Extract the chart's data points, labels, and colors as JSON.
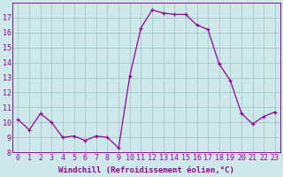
{
  "x": [
    0,
    1,
    2,
    3,
    4,
    5,
    6,
    7,
    8,
    9,
    10,
    11,
    12,
    13,
    14,
    15,
    16,
    17,
    18,
    19,
    20,
    21,
    22,
    23
  ],
  "y": [
    10.2,
    9.5,
    10.6,
    10.0,
    9.0,
    9.1,
    8.8,
    9.1,
    9.0,
    8.3,
    13.1,
    16.3,
    17.5,
    17.3,
    17.2,
    17.2,
    16.5,
    16.2,
    13.9,
    12.8,
    10.6,
    9.9,
    10.4,
    10.7
  ],
  "line_color": "#990099",
  "marker": "+",
  "marker_size": 3,
  "bg_color": "#cce8e8",
  "grid_color": "#aacccc",
  "xlabel": "Windchill (Refroidissement éolien,°C)",
  "xlabel_fontsize": 6.5,
  "tick_fontsize": 6.0,
  "ylim": [
    8,
    18
  ],
  "yticks": [
    8,
    9,
    10,
    11,
    12,
    13,
    14,
    15,
    16,
    17
  ],
  "xticks": [
    0,
    1,
    2,
    3,
    4,
    5,
    6,
    7,
    8,
    9,
    10,
    11,
    12,
    13,
    14,
    15,
    16,
    17,
    18,
    19,
    20,
    21,
    22,
    23
  ],
  "line_width": 0.9
}
